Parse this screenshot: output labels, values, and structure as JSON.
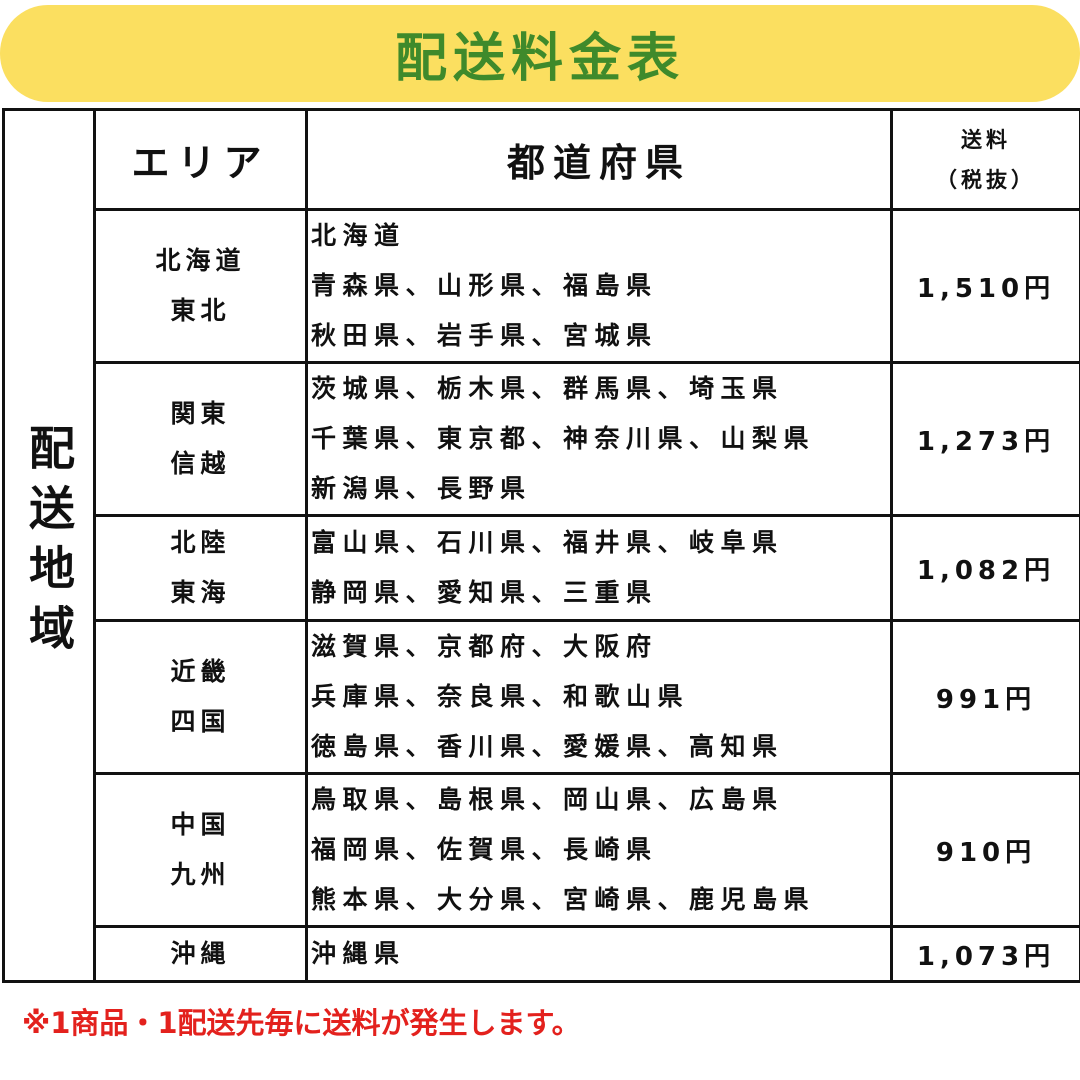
{
  "title": "配送料金表",
  "side_label": "配送地域",
  "header": {
    "area": "エリア",
    "prefectures": "都道府県",
    "fee_line1": "送料",
    "fee_line2": "（税抜）"
  },
  "rows": [
    {
      "area": [
        "北海道",
        "東北"
      ],
      "prefs": [
        "北海道",
        "青森県、山形県、福島県",
        "秋田県、岩手県、宮城県"
      ],
      "fee": "1,510円"
    },
    {
      "area": [
        "関東",
        "信越"
      ],
      "prefs": [
        "茨城県、栃木県、群馬県、埼玉県",
        "千葉県、東京都、神奈川県、山梨県",
        "新潟県、長野県"
      ],
      "fee": "1,273円"
    },
    {
      "area": [
        "北陸",
        "東海"
      ],
      "prefs": [
        "富山県、石川県、福井県、岐阜県",
        "静岡県、愛知県、三重県"
      ],
      "fee": "1,082円"
    },
    {
      "area": [
        "近畿",
        "四国"
      ],
      "prefs": [
        "滋賀県、京都府、大阪府",
        "兵庫県、奈良県、和歌山県",
        "徳島県、香川県、愛媛県、高知県"
      ],
      "fee": "991円"
    },
    {
      "area": [
        "中国",
        "九州"
      ],
      "prefs": [
        "鳥取県、島根県、岡山県、広島県",
        "福岡県、佐賀県、長崎県",
        "熊本県、大分県、宮崎県、鹿児島県"
      ],
      "fee": "910円"
    },
    {
      "area": [
        "沖縄"
      ],
      "prefs": [
        "沖縄県"
      ],
      "fee": "1,073円"
    }
  ],
  "note": "※1商品・1配送先毎に送料が発生します。",
  "colors": {
    "title_bg": "#fbdf60",
    "title_text": "#3f8a2b",
    "note_text": "#e3211d"
  }
}
